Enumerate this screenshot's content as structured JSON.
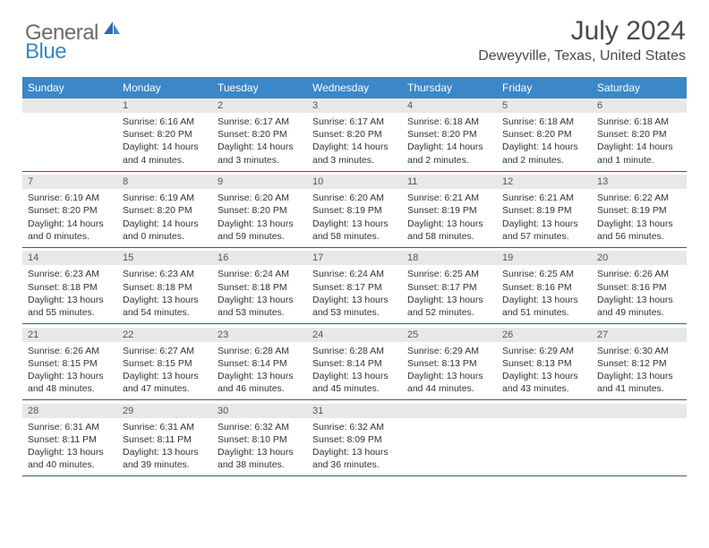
{
  "brand": {
    "text_gray": "General",
    "text_blue": "Blue"
  },
  "title": "July 2024",
  "location": "Deweyville, Texas, United States",
  "colors": {
    "header_bg": "#3b87c8",
    "header_text": "#ffffff",
    "daynum_bg": "#e8e8e8",
    "cell_border": "#3b5a7a",
    "title_color": "#4a4a4a"
  },
  "day_headers": [
    "Sunday",
    "Monday",
    "Tuesday",
    "Wednesday",
    "Thursday",
    "Friday",
    "Saturday"
  ],
  "weeks": [
    {
      "nums": [
        "",
        "1",
        "2",
        "3",
        "4",
        "5",
        "6"
      ],
      "cells": [
        null,
        {
          "sunrise": "Sunrise: 6:16 AM",
          "sunset": "Sunset: 8:20 PM",
          "day1": "Daylight: 14 hours",
          "day2": "and 4 minutes."
        },
        {
          "sunrise": "Sunrise: 6:17 AM",
          "sunset": "Sunset: 8:20 PM",
          "day1": "Daylight: 14 hours",
          "day2": "and 3 minutes."
        },
        {
          "sunrise": "Sunrise: 6:17 AM",
          "sunset": "Sunset: 8:20 PM",
          "day1": "Daylight: 14 hours",
          "day2": "and 3 minutes."
        },
        {
          "sunrise": "Sunrise: 6:18 AM",
          "sunset": "Sunset: 8:20 PM",
          "day1": "Daylight: 14 hours",
          "day2": "and 2 minutes."
        },
        {
          "sunrise": "Sunrise: 6:18 AM",
          "sunset": "Sunset: 8:20 PM",
          "day1": "Daylight: 14 hours",
          "day2": "and 2 minutes."
        },
        {
          "sunrise": "Sunrise: 6:18 AM",
          "sunset": "Sunset: 8:20 PM",
          "day1": "Daylight: 14 hours",
          "day2": "and 1 minute."
        }
      ]
    },
    {
      "nums": [
        "7",
        "8",
        "9",
        "10",
        "11",
        "12",
        "13"
      ],
      "cells": [
        {
          "sunrise": "Sunrise: 6:19 AM",
          "sunset": "Sunset: 8:20 PM",
          "day1": "Daylight: 14 hours",
          "day2": "and 0 minutes."
        },
        {
          "sunrise": "Sunrise: 6:19 AM",
          "sunset": "Sunset: 8:20 PM",
          "day1": "Daylight: 14 hours",
          "day2": "and 0 minutes."
        },
        {
          "sunrise": "Sunrise: 6:20 AM",
          "sunset": "Sunset: 8:20 PM",
          "day1": "Daylight: 13 hours",
          "day2": "and 59 minutes."
        },
        {
          "sunrise": "Sunrise: 6:20 AM",
          "sunset": "Sunset: 8:19 PM",
          "day1": "Daylight: 13 hours",
          "day2": "and 58 minutes."
        },
        {
          "sunrise": "Sunrise: 6:21 AM",
          "sunset": "Sunset: 8:19 PM",
          "day1": "Daylight: 13 hours",
          "day2": "and 58 minutes."
        },
        {
          "sunrise": "Sunrise: 6:21 AM",
          "sunset": "Sunset: 8:19 PM",
          "day1": "Daylight: 13 hours",
          "day2": "and 57 minutes."
        },
        {
          "sunrise": "Sunrise: 6:22 AM",
          "sunset": "Sunset: 8:19 PM",
          "day1": "Daylight: 13 hours",
          "day2": "and 56 minutes."
        }
      ]
    },
    {
      "nums": [
        "14",
        "15",
        "16",
        "17",
        "18",
        "19",
        "20"
      ],
      "cells": [
        {
          "sunrise": "Sunrise: 6:23 AM",
          "sunset": "Sunset: 8:18 PM",
          "day1": "Daylight: 13 hours",
          "day2": "and 55 minutes."
        },
        {
          "sunrise": "Sunrise: 6:23 AM",
          "sunset": "Sunset: 8:18 PM",
          "day1": "Daylight: 13 hours",
          "day2": "and 54 minutes."
        },
        {
          "sunrise": "Sunrise: 6:24 AM",
          "sunset": "Sunset: 8:18 PM",
          "day1": "Daylight: 13 hours",
          "day2": "and 53 minutes."
        },
        {
          "sunrise": "Sunrise: 6:24 AM",
          "sunset": "Sunset: 8:17 PM",
          "day1": "Daylight: 13 hours",
          "day2": "and 53 minutes."
        },
        {
          "sunrise": "Sunrise: 6:25 AM",
          "sunset": "Sunset: 8:17 PM",
          "day1": "Daylight: 13 hours",
          "day2": "and 52 minutes."
        },
        {
          "sunrise": "Sunrise: 6:25 AM",
          "sunset": "Sunset: 8:16 PM",
          "day1": "Daylight: 13 hours",
          "day2": "and 51 minutes."
        },
        {
          "sunrise": "Sunrise: 6:26 AM",
          "sunset": "Sunset: 8:16 PM",
          "day1": "Daylight: 13 hours",
          "day2": "and 49 minutes."
        }
      ]
    },
    {
      "nums": [
        "21",
        "22",
        "23",
        "24",
        "25",
        "26",
        "27"
      ],
      "cells": [
        {
          "sunrise": "Sunrise: 6:26 AM",
          "sunset": "Sunset: 8:15 PM",
          "day1": "Daylight: 13 hours",
          "day2": "and 48 minutes."
        },
        {
          "sunrise": "Sunrise: 6:27 AM",
          "sunset": "Sunset: 8:15 PM",
          "day1": "Daylight: 13 hours",
          "day2": "and 47 minutes."
        },
        {
          "sunrise": "Sunrise: 6:28 AM",
          "sunset": "Sunset: 8:14 PM",
          "day1": "Daylight: 13 hours",
          "day2": "and 46 minutes."
        },
        {
          "sunrise": "Sunrise: 6:28 AM",
          "sunset": "Sunset: 8:14 PM",
          "day1": "Daylight: 13 hours",
          "day2": "and 45 minutes."
        },
        {
          "sunrise": "Sunrise: 6:29 AM",
          "sunset": "Sunset: 8:13 PM",
          "day1": "Daylight: 13 hours",
          "day2": "and 44 minutes."
        },
        {
          "sunrise": "Sunrise: 6:29 AM",
          "sunset": "Sunset: 8:13 PM",
          "day1": "Daylight: 13 hours",
          "day2": "and 43 minutes."
        },
        {
          "sunrise": "Sunrise: 6:30 AM",
          "sunset": "Sunset: 8:12 PM",
          "day1": "Daylight: 13 hours",
          "day2": "and 41 minutes."
        }
      ]
    },
    {
      "nums": [
        "28",
        "29",
        "30",
        "31",
        "",
        "",
        ""
      ],
      "cells": [
        {
          "sunrise": "Sunrise: 6:31 AM",
          "sunset": "Sunset: 8:11 PM",
          "day1": "Daylight: 13 hours",
          "day2": "and 40 minutes."
        },
        {
          "sunrise": "Sunrise: 6:31 AM",
          "sunset": "Sunset: 8:11 PM",
          "day1": "Daylight: 13 hours",
          "day2": "and 39 minutes."
        },
        {
          "sunrise": "Sunrise: 6:32 AM",
          "sunset": "Sunset: 8:10 PM",
          "day1": "Daylight: 13 hours",
          "day2": "and 38 minutes."
        },
        {
          "sunrise": "Sunrise: 6:32 AM",
          "sunset": "Sunset: 8:09 PM",
          "day1": "Daylight: 13 hours",
          "day2": "and 36 minutes."
        },
        null,
        null,
        null
      ]
    }
  ]
}
